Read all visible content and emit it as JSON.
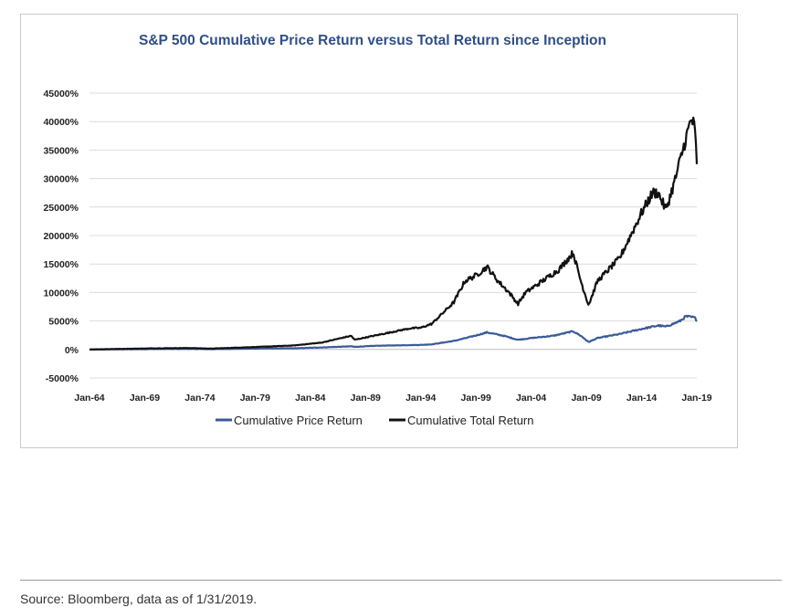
{
  "chart_data": {
    "type": "line",
    "title": "S&P 500 Cumulative Price Return versus Total Return since Inception",
    "xlabel": "",
    "ylabel": "",
    "x_ticks": [
      "Jan-64",
      "Jan-69",
      "Jan-74",
      "Jan-79",
      "Jan-84",
      "Jan-89",
      "Jan-94",
      "Jan-99",
      "Jan-04",
      "Jan-09",
      "Jan-14",
      "Jan-19"
    ],
    "y_ticks": [
      "45000%",
      "40000%",
      "35000%",
      "30000%",
      "25000%",
      "20000%",
      "15000%",
      "10000%",
      "5000%",
      "0%",
      "-5000%"
    ],
    "ylim": [
      -5000,
      45000
    ],
    "xlim": [
      1964.0,
      2019.0
    ],
    "grid": true,
    "legend_position": "bottom",
    "series": [
      {
        "name": "Cumulative Price Return",
        "color": "#3a5a98",
        "x": [
          1964.0,
          1970.0,
          1973.0,
          1975.0,
          1980.0,
          1982.5,
          1985.0,
          1987.7,
          1988.0,
          1990.0,
          1994.0,
          1995.0,
          1997.0,
          1998.5,
          2000.0,
          2001.5,
          2002.8,
          2004.0,
          2006.0,
          2007.8,
          2008.5,
          2009.2,
          2010.0,
          2012.0,
          2014.0,
          2015.5,
          2016.2,
          2017.5,
          2018.0,
          2018.8,
          2019.0
        ],
        "y": [
          0,
          80,
          100,
          60,
          180,
          200,
          350,
          550,
          450,
          650,
          800,
          900,
          1500,
          2200,
          3000,
          2400,
          1700,
          2000,
          2400,
          3200,
          2400,
          1300,
          2000,
          2700,
          3600,
          4200,
          4000,
          5000,
          5800,
          5600,
          5100
        ]
      },
      {
        "name": "Cumulative Total Return",
        "color": "#111111",
        "x": [
          1964.0,
          1970.0,
          1973.0,
          1975.0,
          1980.0,
          1982.5,
          1985.0,
          1987.7,
          1988.0,
          1990.0,
          1993.0,
          1994.0,
          1995.0,
          1997.0,
          1998.0,
          1999.0,
          2000.0,
          2001.0,
          2002.0,
          2002.8,
          2003.5,
          2005.0,
          2006.5,
          2007.8,
          2008.5,
          2009.2,
          2010.0,
          2011.0,
          2012.0,
          2013.0,
          2014.0,
          2015.0,
          2015.5,
          2016.2,
          2017.0,
          2018.0,
          2018.5,
          2018.8,
          2019.0
        ],
        "y": [
          0,
          200,
          250,
          150,
          500,
          700,
          1200,
          2400,
          1700,
          2500,
          3700,
          3800,
          4500,
          8300,
          12000,
          13000,
          14500,
          12000,
          10000,
          8000,
          10000,
          12000,
          14000,
          17000,
          12000,
          7800,
          12000,
          14000,
          16000,
          20000,
          24000,
          27500,
          27500,
          24500,
          29500,
          37000,
          40500,
          39000,
          33000
        ]
      }
    ]
  },
  "footer": {
    "source": "Source: Bloomberg, data as of 1/31/2019."
  }
}
